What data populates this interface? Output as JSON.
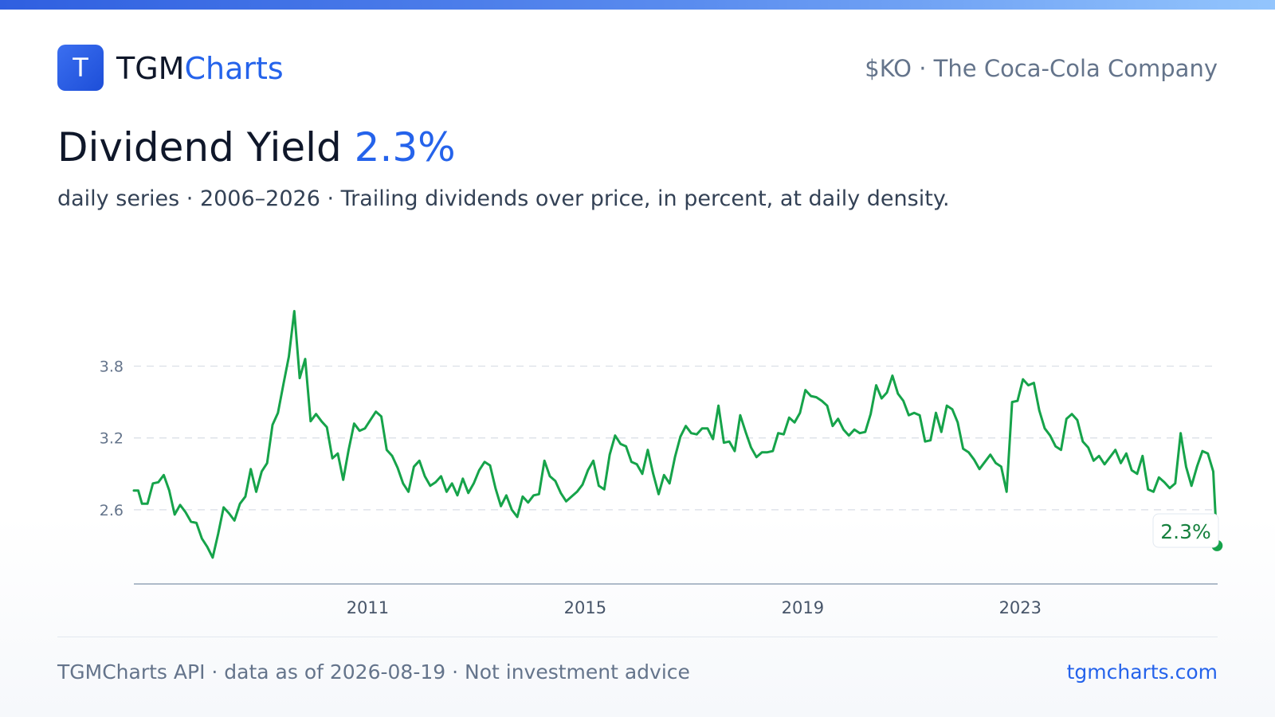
{
  "brand": {
    "logo_letter": "T",
    "name_part1": "TGM",
    "name_part2": "Charts"
  },
  "ticker_line": "$KO · The Coca-Cola Company",
  "title": {
    "label": "Dividend Yield",
    "value": "2.3%"
  },
  "subtitle": "daily series · 2006–2026 · Trailing dividends over price, in percent, at daily density.",
  "footer": {
    "left": "TGMCharts API · data as of 2026-08-19 · Not investment advice",
    "right": "tgmcharts.com"
  },
  "colors": {
    "accent": "#2563eb",
    "line": "#16a34a",
    "text": "#0f172a",
    "muted": "#64748b"
  },
  "icons": {
    "logo": "letter-t-logo-icon"
  },
  "chart_data": {
    "type": "line",
    "title": "Dividend Yield",
    "xlabel": "",
    "ylabel": "",
    "xlim": [
      2006.7,
      2026.63
    ],
    "ylim": [
      1.98,
      4.13
    ],
    "x_ticks": [
      "2011",
      "2015",
      "2019",
      "2023"
    ],
    "y_ticks": [
      "2.6",
      "3.2",
      "3.8"
    ],
    "grid": "horizontal dashed",
    "last_value_label": "2.3%",
    "series": [
      {
        "values": [
          [
            2006.7,
            2.76
          ],
          [
            2006.78,
            2.76
          ],
          [
            2006.85,
            2.65
          ],
          [
            2006.95,
            2.65
          ],
          [
            2007.05,
            2.82
          ],
          [
            2007.15,
            2.83
          ],
          [
            2007.25,
            2.89
          ],
          [
            2007.35,
            2.76
          ],
          [
            2007.45,
            2.56
          ],
          [
            2007.55,
            2.64
          ],
          [
            2007.65,
            2.58
          ],
          [
            2007.75,
            2.5
          ],
          [
            2007.85,
            2.49
          ],
          [
            2007.95,
            2.36
          ],
          [
            2008.05,
            2.29
          ],
          [
            2008.15,
            2.2
          ],
          [
            2008.25,
            2.4
          ],
          [
            2008.35,
            2.62
          ],
          [
            2008.45,
            2.57
          ],
          [
            2008.55,
            2.51
          ],
          [
            2008.65,
            2.65
          ],
          [
            2008.75,
            2.71
          ],
          [
            2008.85,
            2.94
          ],
          [
            2008.95,
            2.75
          ],
          [
            2009.05,
            2.92
          ],
          [
            2009.15,
            2.99
          ],
          [
            2009.25,
            3.31
          ],
          [
            2009.35,
            3.41
          ],
          [
            2009.45,
            3.65
          ],
          [
            2009.55,
            3.88
          ],
          [
            2009.65,
            4.26
          ],
          [
            2009.75,
            3.7
          ],
          [
            2009.85,
            3.86
          ],
          [
            2009.95,
            3.34
          ],
          [
            2010.05,
            3.4
          ],
          [
            2010.15,
            3.34
          ],
          [
            2010.25,
            3.29
          ],
          [
            2010.35,
            3.03
          ],
          [
            2010.45,
            3.07
          ],
          [
            2010.55,
            2.85
          ],
          [
            2010.65,
            3.1
          ],
          [
            2010.75,
            3.32
          ],
          [
            2010.85,
            3.26
          ],
          [
            2010.95,
            3.28
          ],
          [
            2011.05,
            3.35
          ],
          [
            2011.15,
            3.42
          ],
          [
            2011.25,
            3.38
          ],
          [
            2011.35,
            3.1
          ],
          [
            2011.45,
            3.05
          ],
          [
            2011.55,
            2.95
          ],
          [
            2011.65,
            2.82
          ],
          [
            2011.75,
            2.75
          ],
          [
            2011.85,
            2.96
          ],
          [
            2011.95,
            3.01
          ],
          [
            2012.05,
            2.88
          ],
          [
            2012.15,
            2.8
          ],
          [
            2012.25,
            2.83
          ],
          [
            2012.35,
            2.88
          ],
          [
            2012.45,
            2.75
          ],
          [
            2012.55,
            2.82
          ],
          [
            2012.65,
            2.72
          ],
          [
            2012.75,
            2.86
          ],
          [
            2012.85,
            2.74
          ],
          [
            2012.95,
            2.82
          ],
          [
            2013.05,
            2.93
          ],
          [
            2013.15,
            3.0
          ],
          [
            2013.25,
            2.97
          ],
          [
            2013.35,
            2.78
          ],
          [
            2013.45,
            2.63
          ],
          [
            2013.55,
            2.72
          ],
          [
            2013.65,
            2.6
          ],
          [
            2013.75,
            2.54
          ],
          [
            2013.85,
            2.71
          ],
          [
            2013.95,
            2.66
          ],
          [
            2014.05,
            2.72
          ],
          [
            2014.15,
            2.73
          ],
          [
            2014.25,
            3.01
          ],
          [
            2014.35,
            2.88
          ],
          [
            2014.45,
            2.84
          ],
          [
            2014.55,
            2.74
          ],
          [
            2014.65,
            2.67
          ],
          [
            2014.75,
            2.71
          ],
          [
            2014.85,
            2.75
          ],
          [
            2014.95,
            2.81
          ],
          [
            2015.05,
            2.93
          ],
          [
            2015.15,
            3.01
          ],
          [
            2015.25,
            2.8
          ],
          [
            2015.35,
            2.77
          ],
          [
            2015.45,
            3.06
          ],
          [
            2015.55,
            3.22
          ],
          [
            2015.65,
            3.15
          ],
          [
            2015.75,
            3.13
          ],
          [
            2015.85,
            3.0
          ],
          [
            2015.95,
            2.98
          ],
          [
            2016.05,
            2.9
          ],
          [
            2016.15,
            3.1
          ],
          [
            2016.25,
            2.9
          ],
          [
            2016.35,
            2.73
          ],
          [
            2016.45,
            2.89
          ],
          [
            2016.55,
            2.82
          ],
          [
            2016.65,
            3.04
          ],
          [
            2016.75,
            3.21
          ],
          [
            2016.85,
            3.3
          ],
          [
            2016.95,
            3.24
          ],
          [
            2017.05,
            3.23
          ],
          [
            2017.15,
            3.28
          ],
          [
            2017.25,
            3.28
          ],
          [
            2017.35,
            3.19
          ],
          [
            2017.45,
            3.47
          ],
          [
            2017.55,
            3.16
          ],
          [
            2017.65,
            3.17
          ],
          [
            2017.75,
            3.09
          ],
          [
            2017.85,
            3.39
          ],
          [
            2017.95,
            3.25
          ],
          [
            2018.05,
            3.12
          ],
          [
            2018.15,
            3.04
          ],
          [
            2018.25,
            3.08
          ],
          [
            2018.35,
            3.08
          ],
          [
            2018.45,
            3.09
          ],
          [
            2018.55,
            3.24
          ],
          [
            2018.65,
            3.23
          ],
          [
            2018.75,
            3.37
          ],
          [
            2018.85,
            3.33
          ],
          [
            2018.95,
            3.41
          ],
          [
            2019.05,
            3.6
          ],
          [
            2019.15,
            3.55
          ],
          [
            2019.25,
            3.54
          ],
          [
            2019.35,
            3.51
          ],
          [
            2019.45,
            3.47
          ],
          [
            2019.55,
            3.3
          ],
          [
            2019.65,
            3.36
          ],
          [
            2019.75,
            3.27
          ],
          [
            2019.85,
            3.22
          ],
          [
            2019.95,
            3.27
          ],
          [
            2020.05,
            3.24
          ],
          [
            2020.15,
            3.25
          ],
          [
            2020.25,
            3.4
          ],
          [
            2020.35,
            3.64
          ],
          [
            2020.45,
            3.53
          ],
          [
            2020.55,
            3.58
          ],
          [
            2020.65,
            3.72
          ],
          [
            2020.75,
            3.57
          ],
          [
            2020.85,
            3.51
          ],
          [
            2020.95,
            3.39
          ],
          [
            2021.05,
            3.41
          ],
          [
            2021.15,
            3.39
          ],
          [
            2021.25,
            3.17
          ],
          [
            2021.35,
            3.18
          ],
          [
            2021.45,
            3.41
          ],
          [
            2021.55,
            3.25
          ],
          [
            2021.65,
            3.47
          ],
          [
            2021.75,
            3.44
          ],
          [
            2021.85,
            3.33
          ],
          [
            2021.95,
            3.11
          ],
          [
            2022.05,
            3.08
          ],
          [
            2022.15,
            3.02
          ],
          [
            2022.25,
            2.94
          ],
          [
            2022.35,
            3.0
          ],
          [
            2022.45,
            3.06
          ],
          [
            2022.55,
            2.99
          ],
          [
            2022.65,
            2.96
          ],
          [
            2022.75,
            2.75
          ],
          [
            2022.85,
            3.5
          ],
          [
            2022.95,
            3.51
          ],
          [
            2023.05,
            3.69
          ],
          [
            2023.15,
            3.64
          ],
          [
            2023.25,
            3.66
          ],
          [
            2023.35,
            3.43
          ],
          [
            2023.45,
            3.28
          ],
          [
            2023.55,
            3.22
          ],
          [
            2023.65,
            3.13
          ],
          [
            2023.75,
            3.1
          ],
          [
            2023.85,
            3.36
          ],
          [
            2023.95,
            3.4
          ],
          [
            2024.05,
            3.35
          ],
          [
            2024.15,
            3.17
          ],
          [
            2024.25,
            3.12
          ],
          [
            2024.35,
            3.01
          ],
          [
            2024.45,
            3.05
          ],
          [
            2024.55,
            2.98
          ],
          [
            2024.65,
            3.04
          ],
          [
            2024.75,
            3.1
          ],
          [
            2024.85,
            2.99
          ],
          [
            2024.95,
            3.07
          ],
          [
            2025.05,
            2.93
          ],
          [
            2025.15,
            2.9
          ],
          [
            2025.25,
            3.05
          ],
          [
            2025.35,
            2.77
          ],
          [
            2025.45,
            2.75
          ],
          [
            2025.55,
            2.87
          ],
          [
            2025.65,
            2.83
          ],
          [
            2025.75,
            2.78
          ],
          [
            2025.85,
            2.82
          ],
          [
            2025.95,
            3.24
          ],
          [
            2026.05,
            2.96
          ],
          [
            2026.15,
            2.8
          ],
          [
            2026.25,
            2.96
          ],
          [
            2026.35,
            3.09
          ],
          [
            2026.45,
            3.07
          ],
          [
            2026.55,
            2.92
          ],
          [
            2026.62,
            2.3
          ]
        ]
      }
    ]
  }
}
